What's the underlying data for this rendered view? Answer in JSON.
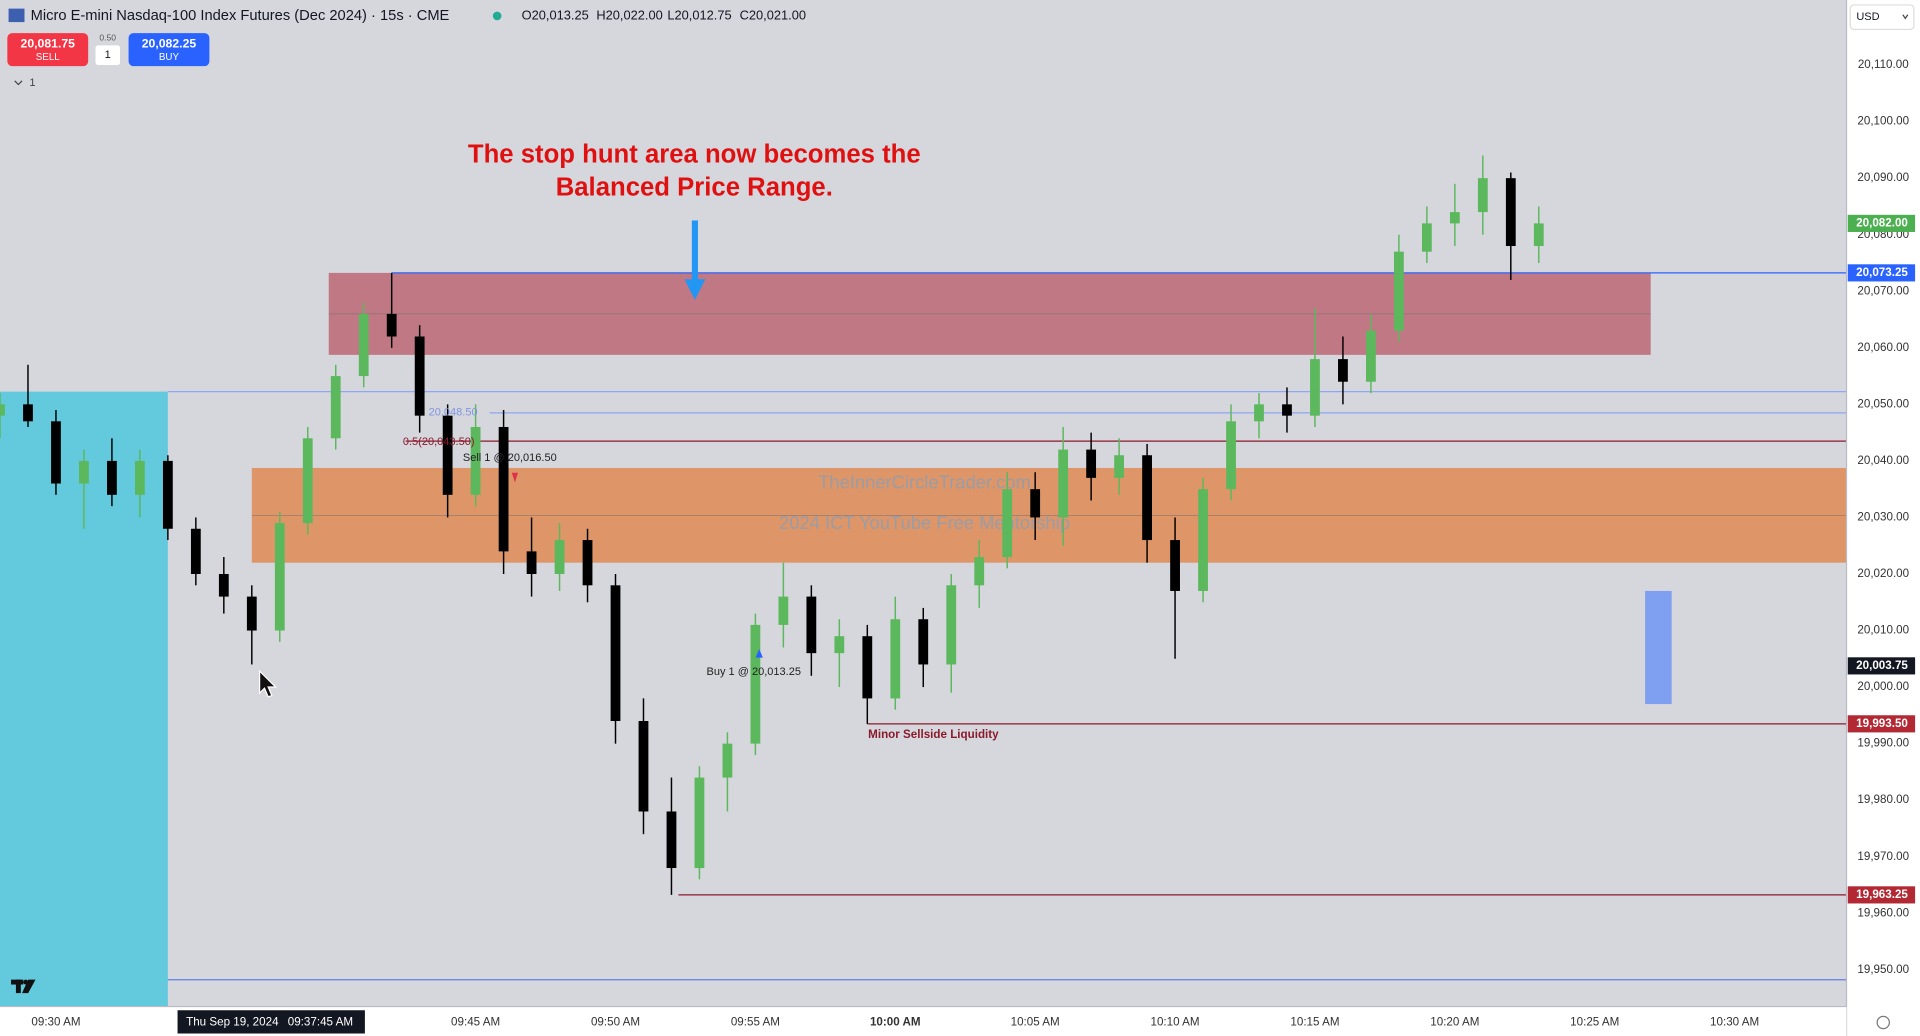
{
  "header": {
    "title": "Micro E-mini Nasdaq-100 Index Futures (Dec 2024) · 15s · CME",
    "ohlc": [
      "O20,013.25",
      "H20,022.00",
      "L20,012.75",
      "C20,021.00"
    ]
  },
  "trade_panel": {
    "sell_price": "20,081.75",
    "sell": "SELL",
    "spread": "0.50",
    "quantity": "1",
    "buy_price": "20,082.25",
    "buy": "BUY",
    "indicator": "1",
    "currency": "USD"
  },
  "chart_data": {
    "type": "candlestick",
    "annotation": [
      "The stop hunt area now becomes the",
      "Balanced Price Range."
    ],
    "watermark": [
      "TheInnerCircleTrader.com",
      "2024 ICT YouTube Free Mentorship"
    ],
    "labels": [
      "20,048.50",
      "0.5(20,043.50)",
      "Sell 1 @ 20,016.50",
      "Buy 1 @ 20,013.25",
      "Minor Sellside Liquidity"
    ],
    "crosshair": {
      "date": "Thu Sep 19, 2024",
      "time": "09:37:45 AM"
    },
    "xlim": [
      "09:28",
      "10:34"
    ],
    "ylim": [
      19943.5,
      20121.5
    ],
    "grid": false,
    "xticks": [
      {
        "value": "09:30",
        "label": "09:30 AM"
      },
      {
        "value": "09:45",
        "label": "09:45 AM"
      },
      {
        "value": "09:50",
        "label": "09:50 AM"
      },
      {
        "value": "09:55",
        "label": "09:55 AM"
      },
      {
        "value": "10:00",
        "label": "10:00 AM"
      },
      {
        "value": "10:05",
        "label": "10:05 AM"
      },
      {
        "value": "10:10",
        "label": "10:10 AM"
      },
      {
        "value": "10:15",
        "label": "10:15 AM"
      },
      {
        "value": "10:20",
        "label": "10:20 AM"
      },
      {
        "value": "10:25",
        "label": "10:25 AM"
      },
      {
        "value": "10:30",
        "label": "10:30 AM"
      }
    ],
    "bold_xtick": 4,
    "yticks": [
      {
        "value": 19950,
        "label": "19,950.00"
      },
      {
        "value": 19960,
        "label": "19,960.00"
      },
      {
        "value": 19970,
        "label": "19,970.00"
      },
      {
        "value": 19980,
        "label": "19,980.00"
      },
      {
        "value": 19990,
        "label": "19,990.00"
      },
      {
        "value": 20000,
        "label": "20,000.00"
      },
      {
        "value": 20010,
        "label": "20,010.00"
      },
      {
        "value": 20020,
        "label": "20,020.00"
      },
      {
        "value": 20030,
        "label": "20,030.00"
      },
      {
        "value": 20040,
        "label": "20,040.00"
      },
      {
        "value": 20050,
        "label": "20,050.00"
      },
      {
        "value": 20060,
        "label": "20,060.00"
      },
      {
        "value": 20070,
        "label": "20,070.00"
      },
      {
        "value": 20080,
        "label": "20,080.00"
      },
      {
        "value": 20090,
        "label": "20,090.00"
      },
      {
        "value": 20100,
        "label": "20,100.00"
      },
      {
        "value": 20110,
        "label": "20,110.00"
      }
    ],
    "price_labels": [
      {
        "value": 20082,
        "label": "20,082.00",
        "color": "#4caf50"
      },
      {
        "value": 20073.25,
        "label": "20,073.25",
        "color": "#2962ff"
      },
      {
        "value": 20003.75,
        "label": "20,003.75",
        "color": "#131722"
      },
      {
        "value": 19993.5,
        "label": "19,993.50",
        "color": "#b22833"
      },
      {
        "value": 19963.25,
        "label": "19,963.25",
        "color": "#b22833"
      }
    ],
    "zones": [
      {
        "x0": "09:28",
        "x1": "09:34",
        "y0": 19943.5,
        "y1": 20052.25,
        "color": "#63c9dd"
      },
      {
        "x0": "09:39:45",
        "x1": "10:27",
        "y0": 20058.75,
        "y1": 20073.25,
        "color": "#c07884"
      },
      {
        "x0": "09:37",
        "x1": "10:34",
        "y0": 20022,
        "y1": 20038.75,
        "color": "#de9668"
      },
      {
        "x0": "10:26:48",
        "x1": "10:27:45",
        "y0": 19997,
        "y1": 20017,
        "color": "#7f9ff0"
      }
    ],
    "lines": [
      {
        "y": 20073.25,
        "x0": "09:42",
        "color": "#2962ff"
      },
      {
        "y": 20052.25,
        "x0": "09:34",
        "color": "#8fa6f2"
      },
      {
        "y": 20048.5,
        "x0": "09:45:30",
        "color": "#8fa6f2"
      },
      {
        "y": 20043.5,
        "x0": "09:42:30",
        "color": "#8b1a2c"
      },
      {
        "y": 19993.5,
        "x0": "09:59",
        "color": "#8b1a2c"
      },
      {
        "y": 19963.25,
        "x0": "09:52:15",
        "color": "#8b1a2c"
      },
      {
        "y": 19948.25,
        "x0": "09:34",
        "color": "#5f7fe8"
      }
    ],
    "up_color": "#5cb85c",
    "down_color": "#000000",
    "x": [
      "09:28",
      "09:29",
      "09:30",
      "09:31",
      "09:32",
      "09:33",
      "09:34",
      "09:35",
      "09:36",
      "09:37",
      "09:38",
      "09:39",
      "09:40",
      "09:41",
      "09:42",
      "09:43",
      "09:44",
      "09:45",
      "09:46",
      "09:47",
      "09:48",
      "09:49",
      "09:50",
      "09:51",
      "09:52",
      "09:53",
      "09:54",
      "09:55",
      "09:56",
      "09:57",
      "09:58",
      "09:59",
      "10:00",
      "10:01",
      "10:02",
      "10:03",
      "10:04",
      "10:05",
      "10:06",
      "10:07",
      "10:08",
      "10:09",
      "10:10",
      "10:11",
      "10:12",
      "10:13",
      "10:14",
      "10:15",
      "10:16",
      "10:17",
      "10:18",
      "10:19",
      "10:20",
      "10:21",
      "10:22",
      "10:23"
    ],
    "open": [
      20048,
      20050,
      20047,
      20036,
      20040,
      20034,
      20040,
      20028,
      20020,
      20016,
      20010,
      20029,
      20044,
      20055,
      20066,
      20062,
      20048,
      20034,
      20046,
      20024,
      20020,
      20026,
      20018,
      19994,
      19978,
      19968,
      19984,
      19990,
      20011,
      20016,
      20006,
      20009,
      19998,
      20012,
      20004,
      20018,
      20023,
      20035,
      20030,
      20042,
      20037,
      20041,
      20026,
      20017,
      20035,
      20047,
      20050,
      20048,
      20058,
      20054,
      20063,
      20077,
      20082,
      20084,
      20090,
      20078
    ],
    "high": [
      20052,
      20057,
      20049,
      20042,
      20044,
      20042,
      20041,
      20030,
      20023,
      20018,
      20031,
      20046,
      20057,
      20068,
      20073.25,
      20064,
      20050,
      20050,
      20049,
      20030,
      20029,
      20028,
      20020,
      19998,
      19984,
      19986,
      19992,
      20013,
      20022,
      20018,
      20012,
      20011,
      20016,
      20014,
      20020,
      20026,
      20038,
      20038,
      20046,
      20045,
      20044,
      20043,
      20030,
      20037,
      20050,
      20052,
      20053,
      20067,
      20062,
      20066,
      20080,
      20085,
      20089,
      20094,
      20091,
      20085
    ],
    "low": [
      20044,
      20046,
      20034,
      20028,
      20032,
      20030,
      20026,
      20018,
      20013,
      20004,
      20008,
      20027,
      20042,
      20053,
      20060,
      20045,
      20030,
      20032,
      20020,
      20016,
      20017,
      20015,
      19990,
      19974,
      19963.25,
      19966,
      19978,
      19988,
      20007,
      20002,
      20000,
      19993.5,
      19996,
      20000,
      19999,
      20014,
      20021,
      20026,
      20025,
      20033,
      20034,
      20022,
      20005,
      20015,
      20033,
      20044,
      20045,
      20046,
      20050,
      20052,
      20061,
      20075,
      20078,
      20080,
      20072,
      20075
    ],
    "close": [
      20050,
      20047,
      20036,
      20040,
      20034,
      20040,
      20028,
      20020,
      20016,
      20010,
      20029,
      20044,
      20055,
      20066,
      20062,
      20048,
      20034,
      20046,
      20024,
      20020,
      20026,
      20018,
      19994,
      19978,
      19968,
      19984,
      19990,
      20011,
      20016,
      20006,
      20009,
      19998,
      20012,
      20004,
      20018,
      20023,
      20035,
      20030,
      20042,
      20037,
      20041,
      20026,
      20017,
      20035,
      20047,
      20050,
      20048,
      20058,
      20054,
      20063,
      20077,
      20082,
      20084,
      20090,
      20078,
      20082
    ]
  }
}
